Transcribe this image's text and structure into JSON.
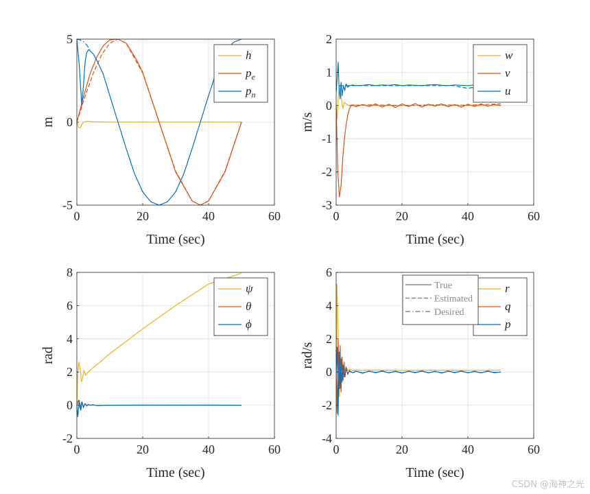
{
  "figure": {
    "watermark": "CSDN @海神之光"
  },
  "colors": {
    "yellow": "#EDB120",
    "orange": "#D95319",
    "blue": "#0072BD",
    "grid": "#e4e4e4",
    "axis": "#262626",
    "legend_gray": "#8c8c8c"
  },
  "chart_data": [
    {
      "id": "position",
      "type": "line",
      "title": "",
      "xlabel": "Time (sec)",
      "ylabel": "m",
      "xlim": [
        0,
        60
      ],
      "ylim": [
        -5,
        5
      ],
      "xticks": [
        0,
        20,
        40,
        60
      ],
      "yticks": [
        -5,
        0,
        5
      ],
      "xticklabels": [
        "0",
        "20",
        "40",
        "60"
      ],
      "yticklabels": [
        "-5",
        "0",
        "5"
      ],
      "grid": true,
      "legend_position": "top-right",
      "series": [
        {
          "key": "h",
          "label": "h",
          "sub": "",
          "color": "#EDB120",
          "style": "solid",
          "x": [
            0,
            0.5,
            1,
            1.5,
            2,
            3,
            5,
            10,
            20,
            30,
            40,
            50
          ],
          "y": [
            0.1,
            -0.3,
            -0.35,
            -0.15,
            0.0,
            0.05,
            0.02,
            0.0,
            0.0,
            0.0,
            0.0,
            0.0
          ]
        },
        {
          "key": "pe",
          "label": "p",
          "sub": "e",
          "color": "#D95319",
          "style": "solid",
          "x": [
            0,
            2,
            4,
            6,
            8,
            10,
            12.5,
            15,
            18,
            20,
            25,
            30,
            35,
            37.5,
            40,
            45,
            50
          ],
          "y": [
            0,
            1.5,
            2.9,
            3.9,
            4.6,
            4.95,
            5.0,
            4.75,
            3.8,
            3.0,
            0.0,
            -3.0,
            -4.75,
            -5.0,
            -4.75,
            -3.0,
            0.0
          ]
        },
        {
          "key": "pe_des",
          "label": "",
          "sub": "",
          "color": "#D95319",
          "style": "dashed",
          "x": [
            0,
            2.5,
            5,
            7.5,
            10,
            12.5,
            15,
            20,
            25,
            30,
            35,
            37.5,
            40,
            45,
            50
          ],
          "y": [
            0,
            1.55,
            2.95,
            4.05,
            4.75,
            5.0,
            4.75,
            2.95,
            0.0,
            -2.95,
            -4.75,
            -5.0,
            -4.75,
            -2.95,
            0.0
          ]
        },
        {
          "key": "pn",
          "label": "p",
          "sub": "n",
          "color": "#0072BD",
          "style": "solid",
          "x": [
            0,
            0.7,
            1.5,
            2,
            2.5,
            3,
            3.5,
            4,
            5,
            6,
            8,
            10,
            12.5,
            15,
            17.5,
            20,
            22.5,
            25,
            27.5,
            30,
            32.5,
            35,
            37.5,
            40,
            42.5,
            45,
            47.5,
            50
          ],
          "y": [
            5.0,
            3.5,
            1.0,
            2.2,
            3.6,
            4.2,
            4.35,
            4.3,
            4.1,
            3.75,
            2.9,
            1.6,
            0.0,
            -1.6,
            -3.1,
            -4.2,
            -4.8,
            -5.0,
            -4.8,
            -4.2,
            -3.1,
            -1.6,
            0.0,
            1.6,
            3.1,
            4.2,
            4.8,
            5.0
          ]
        },
        {
          "key": "pn_des",
          "label": "",
          "sub": "",
          "color": "#0072BD",
          "style": "dashdot",
          "x": [
            0,
            0.5,
            1,
            1.5,
            2,
            2.5,
            3,
            3.5,
            4
          ],
          "y": [
            5.0,
            4.98,
            4.95,
            4.9,
            4.85,
            4.75,
            4.65,
            4.5,
            4.35
          ]
        }
      ]
    },
    {
      "id": "velocity",
      "type": "line",
      "title": "",
      "xlabel": "Time (sec)",
      "ylabel": "m/s",
      "xlim": [
        0,
        60
      ],
      "ylim": [
        -3,
        2
      ],
      "xticks": [
        0,
        20,
        40,
        60
      ],
      "yticks": [
        -3,
        -2,
        -1,
        0,
        1,
        2
      ],
      "xticklabels": [
        "0",
        "20",
        "40",
        "60"
      ],
      "yticklabels": [
        "-3",
        "-2",
        "-1",
        "0",
        "1",
        "2"
      ],
      "grid": true,
      "legend_position": "top-right",
      "series": [
        {
          "key": "w",
          "label": "w",
          "sub": "",
          "color": "#EDB120",
          "style": "solid",
          "x": [
            0,
            0.3,
            0.6,
            1,
            1.5,
            2,
            2.5,
            3,
            4,
            5,
            10,
            20,
            30,
            40,
            50
          ],
          "y": [
            0,
            -0.4,
            0.2,
            0.6,
            0.3,
            -0.1,
            0.1,
            0.05,
            0.0,
            0.02,
            0.0,
            0.0,
            0.01,
            0.0,
            0.0
          ]
        },
        {
          "key": "v",
          "label": "v",
          "sub": "",
          "color": "#D95319",
          "style": "solid",
          "x": [
            0,
            0.5,
            1,
            1.5,
            2,
            2.5,
            3,
            3.5,
            4,
            4.5,
            5,
            6,
            8,
            10,
            12,
            14,
            16,
            18,
            20,
            22,
            24,
            26,
            28,
            30,
            32,
            34,
            36,
            38,
            40,
            42,
            44,
            46,
            48,
            50
          ],
          "y": [
            0,
            -2.0,
            -2.75,
            -2.4,
            -1.6,
            -1.0,
            -0.6,
            -0.3,
            -0.1,
            0.0,
            0.02,
            -0.04,
            0.03,
            -0.03,
            0.05,
            -0.05,
            0.04,
            -0.06,
            0.05,
            -0.03,
            0.06,
            -0.05,
            0.04,
            -0.02,
            0.05,
            -0.04,
            0.03,
            -0.05,
            0.04,
            -0.03,
            0.05,
            -0.02,
            0.03,
            0.0
          ]
        },
        {
          "key": "v_est",
          "label": "",
          "sub": "",
          "color": "#D95319",
          "style": "dashed",
          "x": [
            4,
            10,
            20,
            30,
            40,
            50
          ],
          "y": [
            0.0,
            0.02,
            0.0,
            0.02,
            0.01,
            0.05
          ]
        },
        {
          "key": "u",
          "label": "u",
          "sub": "",
          "color": "#0072BD",
          "style": "solid",
          "x": [
            0,
            0.3,
            0.6,
            0.9,
            1.2,
            1.5,
            1.8,
            2.2,
            2.6,
            3,
            3.5,
            4,
            5,
            6,
            8,
            10,
            12,
            14,
            16,
            18,
            20,
            22,
            24,
            26,
            28,
            30,
            32,
            34,
            36,
            38,
            40,
            42,
            44,
            46,
            48,
            50
          ],
          "y": [
            0.4,
            0.8,
            1.3,
            0.5,
            0.2,
            0.7,
            0.3,
            0.6,
            0.45,
            0.65,
            0.55,
            0.6,
            0.62,
            0.6,
            0.61,
            0.63,
            0.6,
            0.62,
            0.61,
            0.63,
            0.6,
            0.62,
            0.61,
            0.6,
            0.62,
            0.63,
            0.61,
            0.6,
            0.62,
            0.61,
            0.6,
            0.62,
            0.61,
            0.6,
            0.62,
            0.61
          ]
        },
        {
          "key": "u_des",
          "label": "",
          "sub": "",
          "color": "#0072BD",
          "style": "dashed",
          "x": [
            1,
            3,
            5,
            10,
            20,
            30,
            36,
            38,
            40,
            44,
            46,
            48,
            50
          ],
          "y": [
            0.6,
            0.6,
            0.6,
            0.6,
            0.6,
            0.6,
            0.6,
            0.55,
            0.52,
            0.58,
            0.5,
            0.55,
            0.58
          ]
        }
      ]
    },
    {
      "id": "attitude",
      "type": "line",
      "title": "",
      "xlabel": "Time (sec)",
      "ylabel": "rad",
      "xlim": [
        0,
        60
      ],
      "ylim": [
        -2,
        8
      ],
      "xticks": [
        0,
        20,
        40,
        60
      ],
      "yticks": [
        -2,
        0,
        2,
        4,
        6,
        8
      ],
      "xticklabels": [
        "0",
        "20",
        "40",
        "60"
      ],
      "yticklabels": [
        "-2",
        "0",
        "2",
        "4",
        "6",
        "8"
      ],
      "grid": true,
      "legend_position": "top-right",
      "series": [
        {
          "key": "psi",
          "label": "ψ",
          "sub": "",
          "color": "#EDB120",
          "style": "solid",
          "x": [
            0,
            0.3,
            0.6,
            1,
            1.4,
            1.8,
            2.2,
            2.6,
            3,
            3.5,
            4,
            10,
            20,
            30,
            40,
            50
          ],
          "y": [
            0,
            2.0,
            2.6,
            2.2,
            1.4,
            1.7,
            2.1,
            1.8,
            1.9,
            2.0,
            2.1,
            3.1,
            4.6,
            6.0,
            7.3,
            7.95
          ]
        },
        {
          "key": "theta",
          "label": "θ",
          "sub": "",
          "color": "#D95319",
          "style": "solid",
          "x": [
            0,
            0.5,
            1,
            1.5,
            2,
            2.5,
            3,
            3.5,
            4,
            5,
            6,
            10,
            20,
            30,
            40,
            50
          ],
          "y": [
            0,
            0.3,
            -0.2,
            0.2,
            -0.1,
            0.1,
            -0.05,
            0.05,
            0.0,
            0.02,
            -0.02,
            0.0,
            0.0,
            0.01,
            0.0,
            0.0
          ]
        },
        {
          "key": "phi",
          "label": "ϕ",
          "sub": "",
          "color": "#0072BD",
          "style": "solid",
          "x": [
            0,
            0.3,
            0.7,
            1.2,
            1.6,
            2,
            2.5,
            3,
            3.5,
            4,
            5,
            6,
            10,
            20,
            30,
            40,
            50
          ],
          "y": [
            0,
            -0.7,
            0.3,
            -0.3,
            0.2,
            -0.15,
            0.1,
            -0.05,
            0.05,
            0.0,
            0.03,
            -0.02,
            0.0,
            0.01,
            0.0,
            0.01,
            0.0
          ]
        }
      ]
    },
    {
      "id": "rates",
      "type": "line",
      "title": "",
      "xlabel": "Time (sec)",
      "ylabel": "rad/s",
      "xlim": [
        0,
        60
      ],
      "ylim": [
        -4,
        6
      ],
      "xticks": [
        0,
        20,
        40,
        60
      ],
      "yticks": [
        -4,
        -2,
        0,
        2,
        4,
        6
      ],
      "xticklabels": [
        "0",
        "20",
        "40",
        "60"
      ],
      "yticklabels": [
        "-4",
        "-2",
        "0",
        "2",
        "4",
        "6"
      ],
      "grid": true,
      "legend_position": "top-right",
      "legend2_position": "top-center",
      "style_legend": [
        {
          "label": "True",
          "style": "solid"
        },
        {
          "label": "Estimated",
          "style": "dashed"
        },
        {
          "label": "Desired",
          "style": "dashdot"
        }
      ],
      "series": [
        {
          "key": "r",
          "label": "r",
          "sub": "",
          "color": "#EDB120",
          "style": "solid",
          "x": [
            0,
            0.2,
            0.4,
            0.7,
            1,
            1.3,
            1.6,
            2,
            2.5,
            3,
            3.5,
            4,
            5,
            6,
            8,
            10,
            20,
            30,
            40,
            50
          ],
          "y": [
            0,
            5.3,
            4.0,
            1.0,
            -1.5,
            0.8,
            0.2,
            0.5,
            0.0,
            0.3,
            0.1,
            0.15,
            0.1,
            0.12,
            0.1,
            0.12,
            0.1,
            0.11,
            0.1,
            0.12
          ]
        },
        {
          "key": "q",
          "label": "q",
          "sub": "",
          "color": "#D95319",
          "style": "solid",
          "x": [
            0,
            0.3,
            0.6,
            0.9,
            1.2,
            1.5,
            1.8,
            2.1,
            2.4,
            2.7,
            3,
            3.5,
            4,
            5,
            6,
            8,
            10,
            12,
            14,
            16,
            18,
            20,
            22,
            24,
            26,
            28,
            30,
            32,
            34,
            36,
            38,
            40,
            42,
            44,
            46,
            48,
            50
          ],
          "y": [
            0,
            -2.5,
            2.0,
            -1.0,
            1.6,
            -1.2,
            0.9,
            -0.5,
            0.6,
            -0.3,
            0.3,
            -0.15,
            0.1,
            -0.05,
            0.05,
            -0.08,
            0.06,
            -0.05,
            0.08,
            -0.06,
            0.05,
            -0.07,
            0.06,
            -0.05,
            0.07,
            -0.06,
            0.05,
            -0.07,
            0.06,
            -0.05,
            0.07,
            -0.06,
            0.05,
            -0.06,
            0.07,
            -0.05,
            0.0
          ]
        },
        {
          "key": "p",
          "label": "p",
          "sub": "",
          "color": "#0072BD",
          "style": "solid",
          "x": [
            0,
            0.3,
            0.6,
            0.9,
            1.2,
            1.5,
            1.8,
            2.1,
            2.5,
            3,
            3.5,
            4,
            5,
            6,
            8,
            10,
            12,
            14,
            16,
            18,
            20,
            22,
            24,
            26,
            28,
            30,
            32,
            34,
            36,
            38,
            40,
            42,
            44,
            46,
            48,
            50
          ],
          "y": [
            0,
            1.5,
            -2.6,
            1.2,
            -1.0,
            0.8,
            -0.6,
            0.4,
            -0.3,
            0.2,
            -0.1,
            0.05,
            -0.05,
            0.04,
            -0.05,
            0.04,
            -0.03,
            0.05,
            -0.04,
            0.03,
            -0.05,
            0.04,
            -0.03,
            0.05,
            -0.04,
            0.03,
            -0.05,
            0.04,
            -0.03,
            0.05,
            -0.04,
            0.03,
            -0.05,
            0.04,
            -0.03,
            0.0
          ]
        }
      ]
    }
  ]
}
